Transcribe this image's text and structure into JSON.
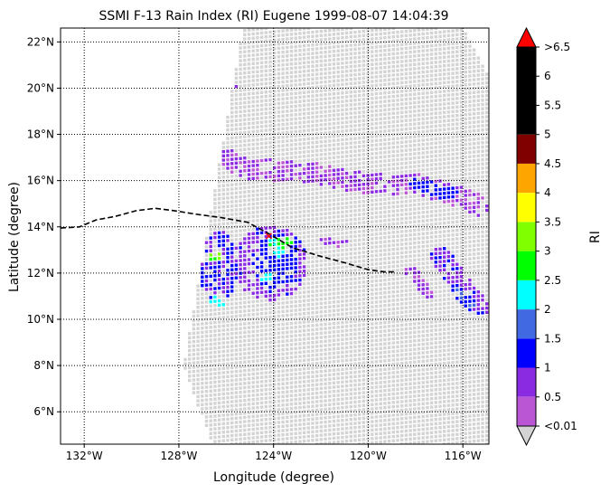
{
  "chart_data": {
    "type": "heatmap",
    "title": "SSMI F-13 Rain Index (RI) Eugene 1999-08-07 14:04:39",
    "xlabel": "Longitude (degree)",
    "ylabel": "Latitude (degree)",
    "xlim": [
      -133.0,
      -114.9
    ],
    "ylim": [
      4.6,
      22.6
    ],
    "x_ticks": [
      {
        "value": -132,
        "label": "132°W"
      },
      {
        "value": -128,
        "label": "128°W"
      },
      {
        "value": -124,
        "label": "124°W"
      },
      {
        "value": -120,
        "label": "120°W"
      },
      {
        "value": -116,
        "label": "116°W"
      }
    ],
    "y_ticks": [
      {
        "value": 6,
        "label": "6°N"
      },
      {
        "value": 8,
        "label": "8°N"
      },
      {
        "value": 10,
        "label": "10°N"
      },
      {
        "value": 12,
        "label": "12°N"
      },
      {
        "value": 14,
        "label": "14°N"
      },
      {
        "value": 16,
        "label": "16°N"
      },
      {
        "value": 18,
        "label": "18°N"
      },
      {
        "value": 20,
        "label": "20°N"
      },
      {
        "value": 22,
        "label": "22°N"
      }
    ],
    "grid": true,
    "swath": {
      "color": "#d3d3d3",
      "corners": [
        [
          -127.8,
          8.0
        ],
        [
          -125.3,
          22.6
        ],
        [
          -116.0,
          22.6
        ],
        [
          -114.9,
          20.5
        ],
        [
          -114.9,
          4.6
        ],
        [
          -126.6,
          4.6
        ]
      ]
    },
    "track": {
      "style": "dashed",
      "color": "#000000",
      "lon": [
        -133.0,
        -132.2,
        -131.5,
        -130.7,
        -129.8,
        -129.0,
        -128.2,
        -127.3,
        -126.2,
        -125.1,
        -124.2,
        -123.2,
        -122.1,
        -121.0,
        -120.0,
        -119.3,
        -118.8
      ],
      "lat": [
        13.95,
        14.0,
        14.3,
        14.45,
        14.7,
        14.8,
        14.7,
        14.55,
        14.4,
        14.2,
        13.7,
        13.1,
        12.75,
        12.45,
        12.15,
        12.05,
        12.05
      ]
    },
    "storm_center": {
      "lon": -124.2,
      "lat": 13.6,
      "marker": "red-x"
    },
    "colorbar": {
      "label": "RI",
      "tick_labels": [
        "<0.01",
        "0.5",
        "1",
        "1.5",
        "2",
        "2.5",
        "3",
        "3.5",
        "4",
        "4.5",
        "5",
        "5.5",
        "6",
        ">6.5"
      ],
      "bands": [
        {
          "from": 0.01,
          "to": 0.5,
          "color": "#ba55d3"
        },
        {
          "from": 0.5,
          "to": 1.0,
          "color": "#8a2be2"
        },
        {
          "from": 1.0,
          "to": 1.5,
          "color": "#0000ff"
        },
        {
          "from": 1.5,
          "to": 2.0,
          "color": "#4169e1"
        },
        {
          "from": 2.0,
          "to": 2.5,
          "color": "#00ffff"
        },
        {
          "from": 2.5,
          "to": 3.0,
          "color": "#00ff00"
        },
        {
          "from": 3.0,
          "to": 3.5,
          "color": "#7fff00"
        },
        {
          "from": 3.5,
          "to": 4.0,
          "color": "#ffff00"
        },
        {
          "from": 4.0,
          "to": 4.5,
          "color": "#ffa500"
        },
        {
          "from": 4.5,
          "to": 5.0,
          "color": "#800000"
        },
        {
          "from": 5.0,
          "to": 6.5,
          "color": "#000000"
        }
      ],
      "under_color": "#d3d3d3",
      "over_color": "#ff0000"
    },
    "rain_regions": [
      {
        "name": "north band",
        "points": [
          [
            -125.9,
            17.0
          ],
          [
            -125.3,
            16.6
          ],
          [
            -122.5,
            16.4
          ],
          [
            -120.0,
            15.9
          ],
          [
            -118.0,
            15.9
          ],
          [
            -116.0,
            15.3
          ],
          [
            -115.4,
            15.0
          ]
        ],
        "width": 0.45,
        "ri": 0.5
      },
      {
        "name": "north band core",
        "points": [
          [
            -118.0,
            15.9
          ],
          [
            -116.6,
            15.5
          ]
        ],
        "width": 0.3,
        "ri": 1.2
      },
      {
        "name": "western cluster",
        "center": [
          -126.4,
          12.3
        ],
        "radius": [
          0.8,
          1.6
        ],
        "ri": 1.0
      },
      {
        "name": "main cluster",
        "center": [
          -124.2,
          12.5
        ],
        "radius": [
          1.6,
          1.6
        ],
        "ri": 0.8
      },
      {
        "name": "main cluster core",
        "center": [
          -123.9,
          12.6
        ],
        "radius": [
          0.9,
          1.2
        ],
        "ri": 1.2
      },
      {
        "name": "center cyan",
        "center": [
          -123.9,
          13.2
        ],
        "radius": [
          0.45,
          0.45
        ],
        "ri": 2.3
      },
      {
        "name": "center green",
        "center": [
          -123.6,
          13.4
        ],
        "radius": [
          0.3,
          0.3
        ],
        "ri": 2.8
      },
      {
        "name": "west green",
        "center": [
          -126.5,
          12.8
        ],
        "radius": [
          0.3,
          0.3
        ],
        "ri": 2.8
      },
      {
        "name": "west cyan",
        "center": [
          -126.4,
          10.8
        ],
        "radius": [
          0.35,
          0.3
        ],
        "ri": 2.2
      },
      {
        "name": "inner cyan",
        "center": [
          -124.4,
          11.9
        ],
        "radius": [
          0.25,
          0.25
        ],
        "ri": 2.3
      },
      {
        "name": "east band",
        "points": [
          [
            -117.0,
            12.8
          ],
          [
            -116.2,
            11.6
          ],
          [
            -115.4,
            10.6
          ]
        ],
        "width": 0.45,
        "ri": 0.8
      },
      {
        "name": "east band core",
        "points": [
          [
            -116.4,
            11.4
          ],
          [
            -115.8,
            10.8
          ]
        ],
        "width": 0.25,
        "ri": 1.3
      },
      {
        "name": "east fragment",
        "points": [
          [
            -118.3,
            12.2
          ],
          [
            -117.5,
            11.2
          ]
        ],
        "width": 0.25,
        "ri": 0.6
      },
      {
        "name": "north fragment",
        "center": [
          -125.9,
          20.2
        ],
        "radius": [
          0.3,
          0.15
        ],
        "ri": 0.5
      },
      {
        "name": "mid fragment",
        "points": [
          [
            -122.0,
            13.5
          ],
          [
            -121.0,
            13.3
          ]
        ],
        "width": 0.2,
        "ri": 0.5
      }
    ]
  }
}
